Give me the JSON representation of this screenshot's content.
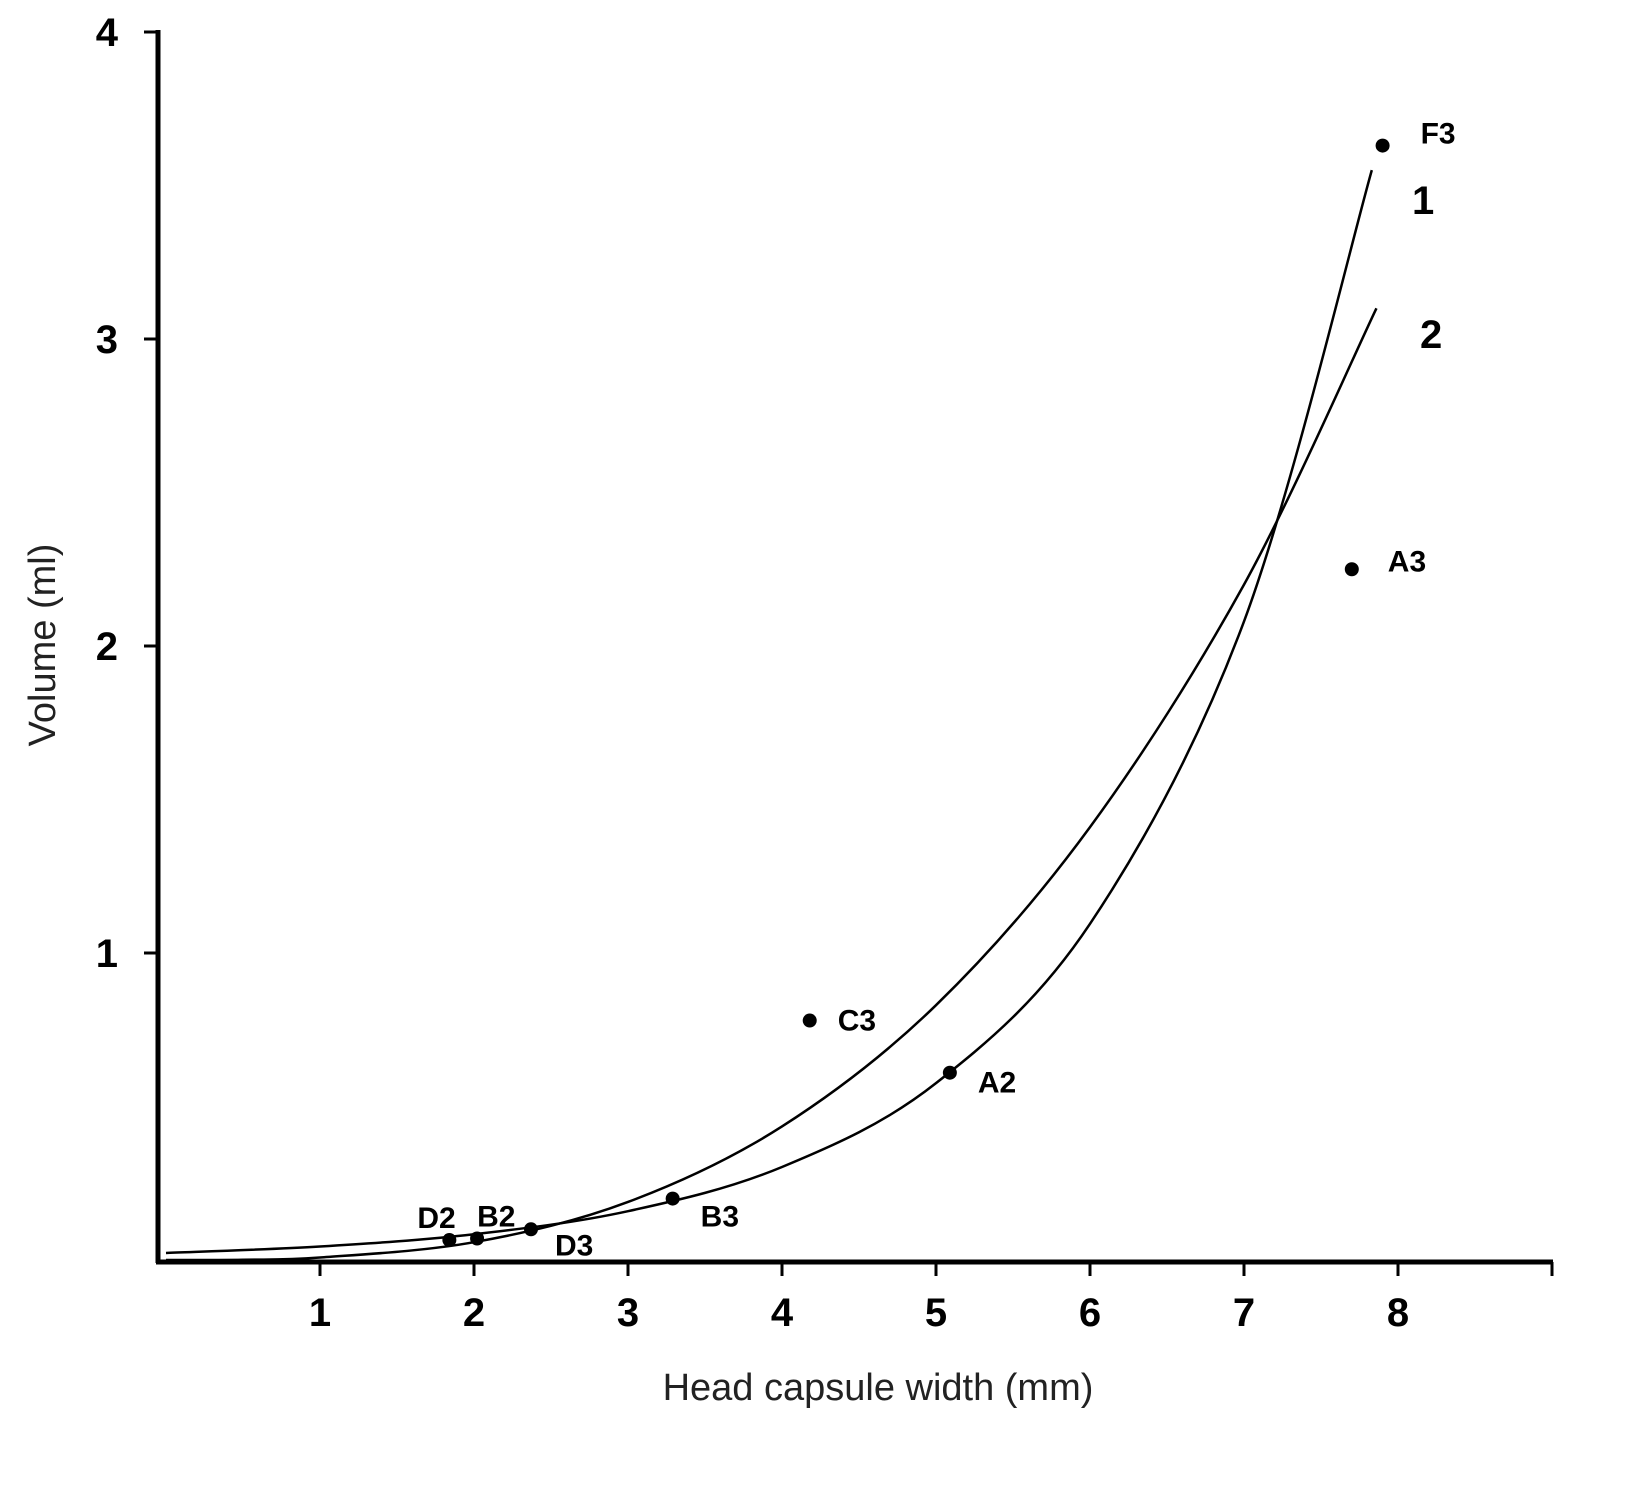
{
  "chart_data": {
    "type": "scatter",
    "title": "",
    "xlabel": "Head capsule width (mm)",
    "ylabel": "Volume (ml)",
    "xlim": [
      0,
      9
    ],
    "ylim": [
      0,
      4
    ],
    "xticks": [
      1,
      2,
      3,
      4,
      5,
      6,
      7,
      8
    ],
    "yticks": [
      1,
      2,
      3,
      4
    ],
    "grid": false,
    "points": [
      {
        "label": "F3",
        "x": 7.9,
        "y": 3.63
      },
      {
        "label": "A3",
        "x": 7.7,
        "y": 2.25
      },
      {
        "label": "C3",
        "x": 4.18,
        "y": 0.78
      },
      {
        "label": "A2",
        "x": 5.09,
        "y": 0.61
      },
      {
        "label": "B3",
        "x": 3.29,
        "y": 0.2
      },
      {
        "label": "D3",
        "x": 2.37,
        "y": 0.1
      },
      {
        "label": "B2",
        "x": 2.02,
        "y": 0.07
      },
      {
        "label": "D2",
        "x": 1.84,
        "y": 0.065
      }
    ],
    "series": [
      {
        "name": "1",
        "x": [
          0,
          1,
          2,
          3,
          4,
          5,
          6,
          7,
          7.83
        ],
        "y": [
          0.023,
          0.044,
          0.084,
          0.159,
          0.303,
          0.576,
          1.095,
          2.08,
          3.55
        ]
      },
      {
        "name": "2",
        "x": [
          0,
          0.5,
          1,
          2,
          3,
          4,
          5,
          6,
          7,
          7.86
        ],
        "y": [
          0,
          0.001,
          0.008,
          0.058,
          0.189,
          0.435,
          0.83,
          1.41,
          2.2,
          3.1
        ]
      }
    ]
  }
}
